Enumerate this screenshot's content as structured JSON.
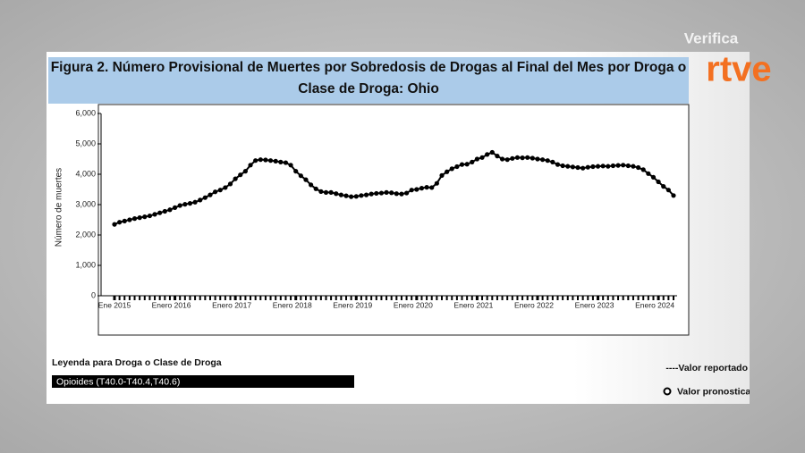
{
  "branding": {
    "verifica": "Verifica",
    "logo": "rtve"
  },
  "chart_data": {
    "type": "line",
    "title": "Figura 2. Número Provisional de Muertes por Sobredosis de Drogas al Final del Mes por Droga o Clase de Droga: Ohio",
    "y_label": "Número de muertes",
    "legend_title": "Leyenda para Droga o Clase de Droga",
    "legend_reported": "----Valor reportado",
    "legend_forecast": "Valor pronosticado",
    "categories": [
      "Ene 2015",
      null,
      null,
      null,
      null,
      null,
      null,
      null,
      null,
      null,
      null,
      null,
      "Enero 2016",
      null,
      null,
      null,
      null,
      null,
      null,
      null,
      null,
      null,
      null,
      null,
      "Enero 2017",
      null,
      null,
      null,
      null,
      null,
      null,
      null,
      null,
      null,
      null,
      null,
      "Enero 2018",
      null,
      null,
      null,
      null,
      null,
      null,
      null,
      null,
      null,
      null,
      null,
      "Enero 2019",
      null,
      null,
      null,
      null,
      null,
      null,
      null,
      null,
      null,
      null,
      null,
      "Enero 2020",
      null,
      null,
      null,
      null,
      null,
      null,
      null,
      null,
      null,
      null,
      null,
      "Enero 2021",
      null,
      null,
      null,
      null,
      null,
      null,
      null,
      null,
      null,
      null,
      null,
      "Enero 2022",
      null,
      null,
      null,
      null,
      null,
      null,
      null,
      null,
      null,
      null,
      null,
      "Enero 2023",
      null,
      null,
      null,
      null,
      null,
      null,
      null,
      null,
      null,
      null,
      null,
      "Enero 2024",
      null,
      null,
      null
    ],
    "series": [
      {
        "name": "Opioides (T40.0-T40.4,T40.6)",
        "color": "#000000",
        "values": [
          2350,
          2420,
          2460,
          2500,
          2540,
          2570,
          2600,
          2630,
          2680,
          2730,
          2780,
          2830,
          2900,
          2970,
          3010,
          3040,
          3080,
          3150,
          3230,
          3320,
          3420,
          3480,
          3560,
          3680,
          3850,
          3980,
          4100,
          4300,
          4450,
          4480,
          4470,
          4450,
          4430,
          4400,
          4380,
          4300,
          4100,
          3950,
          3820,
          3650,
          3520,
          3430,
          3400,
          3400,
          3360,
          3320,
          3290,
          3260,
          3270,
          3300,
          3320,
          3350,
          3370,
          3380,
          3400,
          3390,
          3360,
          3350,
          3380,
          3480,
          3500,
          3540,
          3570,
          3560,
          3700,
          3960,
          4080,
          4180,
          4250,
          4320,
          4330,
          4400,
          4500,
          4550,
          4650,
          4720,
          4600,
          4500,
          4480,
          4520,
          4550,
          4540,
          4550,
          4530,
          4500,
          4480,
          4450,
          4400,
          4320,
          4280,
          4260,
          4240,
          4220,
          4200,
          4230,
          4250,
          4260,
          4270,
          4260,
          4280,
          4290,
          4300,
          4280,
          4260,
          4220,
          4150,
          4020,
          3900,
          3750,
          3600,
          3480,
          3300
        ]
      }
    ],
    "ylim": [
      0,
      6000
    ],
    "yticks": [
      0,
      {
        "value": 1000,
        "label": "1,000"
      },
      {
        "value": 2000,
        "label": "2,000"
      },
      {
        "value": 3000,
        "label": "3,000"
      },
      {
        "value": 4000,
        "label": "4,000"
      },
      {
        "value": 5000,
        "label": "5,000"
      },
      {
        "value": 6000,
        "label": "6,000"
      }
    ],
    "grid": false
  }
}
